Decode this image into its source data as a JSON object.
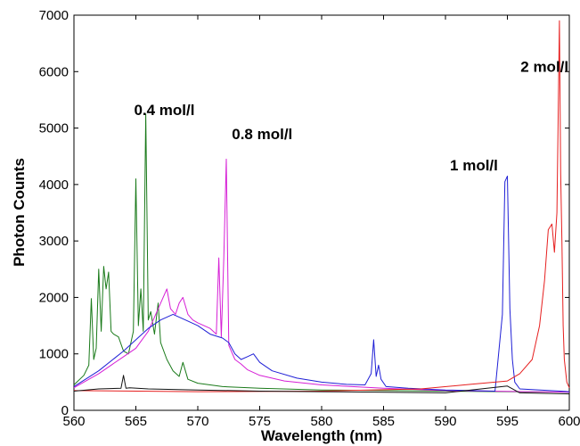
{
  "chart_data": {
    "type": "line",
    "title": "",
    "xlabel": "Wavelength (nm)",
    "ylabel": "Photon Counts",
    "xlim": [
      560,
      600
    ],
    "ylim": [
      0,
      7000
    ],
    "xticks": [
      560,
      565,
      570,
      575,
      580,
      585,
      590,
      595,
      600
    ],
    "yticks": [
      0,
      1000,
      2000,
      3000,
      4000,
      5000,
      6000,
      7000
    ],
    "grid": false,
    "legend": "none",
    "annotations": [
      {
        "text": "0.4 mol/l",
        "x": 567.3,
        "y": 5230
      },
      {
        "text": "0.8 mol/l",
        "x": 575.2,
        "y": 4800
      },
      {
        "text": "1 mol/l",
        "x": 592.3,
        "y": 4250
      },
      {
        "text": "2 mol/l",
        "x": 598.0,
        "y": 6000
      }
    ],
    "series": [
      {
        "color": "#1a7a1a",
        "x": [
          560,
          560.8,
          561.2,
          561.4,
          561.6,
          561.8,
          562.0,
          562.2,
          562.4,
          562.6,
          562.8,
          563.0,
          563.2,
          563.6,
          564.0,
          564.4,
          564.8,
          565.0,
          565.2,
          565.4,
          565.6,
          565.8,
          566.0,
          566.2,
          566.5,
          566.8,
          567.0,
          567.5,
          568.0,
          568.5,
          568.8,
          569.2,
          570,
          572,
          575,
          580,
          590,
          600
        ],
        "values": [
          450,
          620,
          800,
          1980,
          900,
          1100,
          2500,
          1400,
          2550,
          2150,
          2450,
          1400,
          1350,
          1300,
          1050,
          1000,
          1400,
          4100,
          1500,
          2150,
          1400,
          5250,
          1600,
          1750,
          1350,
          1900,
          1200,
          900,
          700,
          600,
          850,
          550,
          480,
          420,
          390,
          360,
          340,
          320
        ]
      },
      {
        "color": "#d61fd6",
        "x": [
          560,
          562,
          563,
          564,
          565,
          565.5,
          566,
          566.5,
          567,
          567.5,
          567.8,
          568.2,
          568.5,
          568.8,
          569.2,
          569.6,
          570,
          570.5,
          571,
          571.5,
          571.7,
          571.9,
          572.1,
          572.3,
          572.5,
          573,
          573.5,
          574,
          575,
          577,
          580,
          585,
          590,
          600
        ],
        "values": [
          400,
          650,
          800,
          950,
          1100,
          1250,
          1400,
          1650,
          1900,
          2150,
          1800,
          1700,
          1900,
          2000,
          1700,
          1600,
          1550,
          1500,
          1450,
          1350,
          2700,
          1300,
          2700,
          4450,
          1150,
          900,
          820,
          720,
          620,
          520,
          450,
          390,
          350,
          320
        ]
      },
      {
        "color": "#1f1fd6",
        "x": [
          560,
          562,
          564,
          566,
          567,
          568,
          569,
          570,
          571,
          572,
          572.5,
          573,
          573.5,
          574,
          574.5,
          575,
          576,
          578,
          580,
          582,
          583.5,
          584,
          584.2,
          584.4,
          584.6,
          584.8,
          585.2,
          587,
          590,
          594,
          594.6,
          594.8,
          595.0,
          595.2,
          595.4,
          595.6,
          596,
          600
        ],
        "values": [
          420,
          700,
          1050,
          1450,
          1600,
          1700,
          1600,
          1500,
          1350,
          1280,
          1200,
          1000,
          900,
          950,
          1000,
          850,
          700,
          570,
          500,
          460,
          450,
          650,
          1250,
          600,
          800,
          550,
          420,
          390,
          360,
          340,
          1700,
          4050,
          4150,
          1800,
          900,
          500,
          380,
          330
        ]
      },
      {
        "color": "#e61f1f",
        "x": [
          560,
          570,
          580,
          588,
          592,
          595,
          596,
          597,
          597.6,
          598.0,
          598.3,
          598.6,
          598.8,
          599.0,
          599.1,
          599.2,
          599.3,
          599.4,
          599.5,
          599.6,
          599.8,
          600
        ],
        "values": [
          350,
          330,
          340,
          380,
          460,
          520,
          650,
          900,
          1500,
          2300,
          3200,
          3300,
          2800,
          3500,
          5200,
          6900,
          4200,
          3000,
          1500,
          900,
          500,
          400
        ]
      },
      {
        "color": "#111111",
        "x": [
          560,
          562,
          563.8,
          564.0,
          564.2,
          564.5,
          566,
          570,
          575,
          580,
          590,
          595,
          596,
          600
        ],
        "values": [
          340,
          380,
          390,
          620,
          390,
          400,
          380,
          360,
          340,
          330,
          310,
          430,
          310,
          290
        ]
      }
    ]
  }
}
